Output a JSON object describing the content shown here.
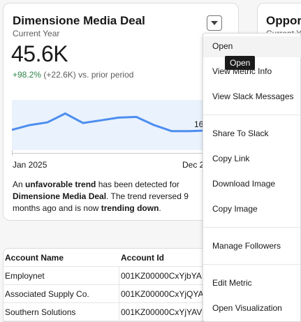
{
  "card": {
    "title": "Dimensione Media Deal",
    "subtitle": "Current Year",
    "value": "45.6K",
    "delta_pct": "+98.2%",
    "delta_rest": "(+22.6K) vs. prior period",
    "last_label": "16",
    "x_start": "Jan 2025",
    "x_end": "Dec 2",
    "insight": {
      "p1": "An ",
      "b1": "unfavorable trend",
      "p2": " has been detected for ",
      "b2": "Dimensione Media Deal",
      "p3": ". The trend reversed 9 months ago and is now ",
      "b3": "trending down",
      "p4": "."
    },
    "line_color": "#4d8ef0",
    "area_color": "#eaf2fd"
  },
  "card2": {
    "title": "Oppor",
    "subtitle": "Current Y"
  },
  "chart_data": {
    "type": "line",
    "series": [
      {
        "values": [
          30,
          37,
          41,
          54,
          40,
          44,
          48,
          49,
          37,
          28,
          28,
          29
        ]
      }
    ],
    "ylim": [
      0,
      70
    ]
  },
  "table": {
    "headers": [
      "Account Name",
      "Account Id"
    ],
    "rows": [
      [
        "Employnet",
        "001KZ00000CxYjbYA"
      ],
      [
        "Associated Supply Co.",
        "001KZ00000CxYjQYA"
      ],
      [
        "Southern Solutions",
        "001KZ00000CxYjYAV"
      ]
    ]
  },
  "menu": {
    "items": [
      "Open",
      "View Metric Info",
      "View Slack Messages",
      "Share To Slack",
      "Copy Link",
      "Download Image",
      "Copy Image",
      "Manage Followers",
      "Edit Metric",
      "Open Visualization"
    ],
    "tooltip": "Open"
  }
}
